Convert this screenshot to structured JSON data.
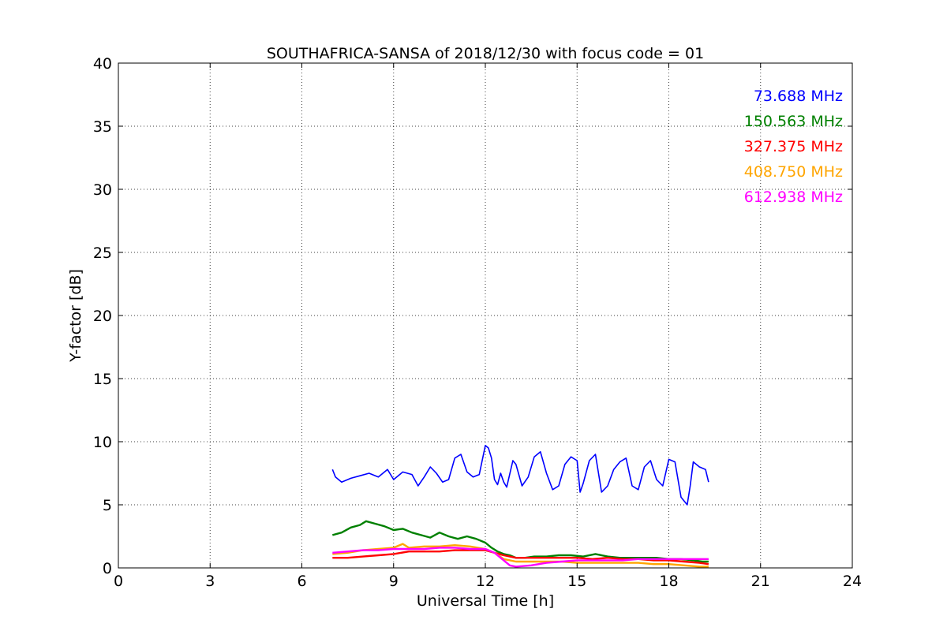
{
  "chart_data": {
    "type": "line",
    "title": "SOUTHAFRICA-SANSA of 2018/12/30 with focus code = 01",
    "xlabel": "Universal Time [h]",
    "ylabel": "Y-factor [dB]",
    "xlim": [
      0,
      24
    ],
    "ylim": [
      0,
      40
    ],
    "xticks": [
      0,
      3,
      6,
      9,
      12,
      15,
      18,
      21,
      24
    ],
    "yticks": [
      0,
      5,
      10,
      15,
      20,
      25,
      30,
      35,
      40
    ],
    "grid": true,
    "legend_position": "top-right",
    "series": [
      {
        "name": "73.688 MHz",
        "color": "#0000ff",
        "x": [
          7.0,
          7.1,
          7.3,
          7.6,
          7.9,
          8.2,
          8.5,
          8.8,
          9.0,
          9.3,
          9.6,
          9.8,
          10.0,
          10.2,
          10.4,
          10.6,
          10.8,
          11.0,
          11.2,
          11.4,
          11.6,
          11.8,
          12.0,
          12.1,
          12.2,
          12.3,
          12.4,
          12.5,
          12.6,
          12.7,
          12.9,
          13.0,
          13.2,
          13.4,
          13.6,
          13.8,
          14.0,
          14.2,
          14.4,
          14.6,
          14.8,
          15.0,
          15.1,
          15.2,
          15.4,
          15.6,
          15.8,
          16.0,
          16.2,
          16.4,
          16.6,
          16.8,
          17.0,
          17.2,
          17.4,
          17.6,
          17.8,
          18.0,
          18.2,
          18.4,
          18.6,
          18.7,
          18.8,
          19.0,
          19.2,
          19.3
        ],
        "y": [
          7.8,
          7.2,
          6.8,
          7.1,
          7.3,
          7.5,
          7.2,
          7.8,
          7.0,
          7.6,
          7.4,
          6.5,
          7.2,
          8.0,
          7.5,
          6.8,
          7.0,
          8.7,
          9.0,
          7.6,
          7.2,
          7.4,
          9.7,
          9.5,
          8.7,
          7.0,
          6.6,
          7.5,
          6.8,
          6.4,
          8.5,
          8.2,
          6.5,
          7.2,
          8.8,
          9.2,
          7.5,
          6.2,
          6.5,
          8.2,
          8.8,
          8.5,
          6.0,
          6.7,
          8.5,
          9.0,
          6.0,
          6.5,
          7.8,
          8.4,
          8.7,
          6.5,
          6.2,
          8.0,
          8.5,
          7.0,
          6.5,
          8.6,
          8.4,
          5.6,
          5.0,
          6.5,
          8.4,
          8.0,
          7.8,
          6.8
        ]
      },
      {
        "name": "150.563 MHz",
        "color": "#008000",
        "x": [
          7.0,
          7.3,
          7.6,
          7.9,
          8.1,
          8.4,
          8.7,
          9.0,
          9.3,
          9.6,
          9.9,
          10.2,
          10.5,
          10.8,
          11.1,
          11.4,
          11.7,
          12.0,
          12.2,
          12.4,
          12.6,
          12.8,
          13.0,
          13.3,
          13.6,
          14.0,
          14.4,
          14.8,
          15.2,
          15.6,
          16.0,
          16.4,
          16.8,
          17.2,
          17.6,
          18.0,
          18.4,
          18.8,
          19.1,
          19.3
        ],
        "y": [
          2.6,
          2.8,
          3.2,
          3.4,
          3.7,
          3.5,
          3.3,
          3.0,
          3.1,
          2.8,
          2.6,
          2.4,
          2.8,
          2.5,
          2.3,
          2.5,
          2.3,
          2.0,
          1.6,
          1.3,
          1.1,
          1.0,
          0.8,
          0.8,
          0.9,
          0.9,
          1.0,
          1.0,
          0.9,
          1.1,
          0.9,
          0.8,
          0.8,
          0.8,
          0.8,
          0.7,
          0.7,
          0.6,
          0.5,
          0.5
        ]
      },
      {
        "name": "327.375 MHz",
        "color": "#ff0000",
        "x": [
          7.0,
          7.5,
          8.0,
          8.5,
          9.0,
          9.5,
          10.0,
          10.5,
          11.0,
          11.5,
          12.0,
          12.3,
          12.6,
          13.0,
          13.5,
          14.0,
          14.5,
          15.0,
          15.5,
          16.0,
          16.5,
          17.0,
          17.5,
          18.0,
          18.5,
          19.0,
          19.3
        ],
        "y": [
          0.8,
          0.8,
          0.9,
          1.0,
          1.1,
          1.3,
          1.3,
          1.3,
          1.4,
          1.4,
          1.4,
          1.2,
          1.0,
          0.8,
          0.8,
          0.8,
          0.8,
          0.8,
          0.7,
          0.8,
          0.7,
          0.7,
          0.6,
          0.6,
          0.5,
          0.4,
          0.3
        ]
      },
      {
        "name": "408.750 MHz",
        "color": "#ffa500",
        "x": [
          7.0,
          7.5,
          8.0,
          8.5,
          9.0,
          9.3,
          9.5,
          10.0,
          10.5,
          11.0,
          11.5,
          12.0,
          12.3,
          12.6,
          13.0,
          13.5,
          14.0,
          14.5,
          15.0,
          15.5,
          16.0,
          16.5,
          17.0,
          17.5,
          18.0,
          18.5,
          19.0,
          19.3
        ],
        "y": [
          1.1,
          1.2,
          1.4,
          1.5,
          1.6,
          1.9,
          1.6,
          1.7,
          1.7,
          1.8,
          1.7,
          1.5,
          1.2,
          0.7,
          0.5,
          0.5,
          0.5,
          0.5,
          0.4,
          0.4,
          0.4,
          0.4,
          0.4,
          0.3,
          0.3,
          0.2,
          0.1,
          0.1
        ]
      },
      {
        "name": "612.938 MHz",
        "color": "#ff00ff",
        "x": [
          7.0,
          7.5,
          8.0,
          8.5,
          9.0,
          9.5,
          10.0,
          10.5,
          11.0,
          11.5,
          12.0,
          12.3,
          12.6,
          12.8,
          13.0,
          13.5,
          14.0,
          14.5,
          15.0,
          15.5,
          16.0,
          16.5,
          17.0,
          17.5,
          18.0,
          18.5,
          19.0,
          19.3
        ],
        "y": [
          1.2,
          1.3,
          1.4,
          1.4,
          1.5,
          1.5,
          1.5,
          1.6,
          1.6,
          1.5,
          1.5,
          1.2,
          0.6,
          0.2,
          0.1,
          0.2,
          0.4,
          0.5,
          0.6,
          0.6,
          0.6,
          0.6,
          0.7,
          0.7,
          0.7,
          0.7,
          0.7,
          0.7
        ]
      }
    ]
  }
}
